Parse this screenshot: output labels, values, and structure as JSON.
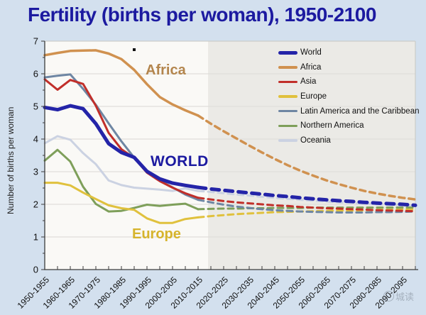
{
  "title": "Fertility (births per woman), 1950-2100",
  "axes": {
    "y_label": "Number of births per woman",
    "y_ticks": [
      "0",
      "1",
      "2",
      "3",
      "4",
      "5",
      "6",
      "7"
    ]
  },
  "annotations": {
    "africa": "Africa",
    "world": "WORLD",
    "europe": "Europe"
  },
  "watermark": "城读",
  "chart_data": {
    "type": "line",
    "title": "Fertility (births per woman), 1950-2100",
    "xlabel": "",
    "ylabel": "Number of births per woman",
    "ylim": [
      0,
      7
    ],
    "grid": "horizontal",
    "legend_position": "upper right",
    "x_step_years": 5,
    "n_points": 30,
    "x_tick_labels": [
      "1950-1955",
      "1960-1965",
      "1970-1975",
      "1980-1985",
      "1990-1995",
      "2000-2005",
      "2010-2015",
      "2020-2025",
      "2030-2035",
      "2040-2045",
      "2050-2055",
      "2060-2065",
      "2070-2075",
      "2080-2085",
      "2090-2095"
    ],
    "tick_every": 2,
    "forecast_start_index": 13,
    "forecast_note": "dashed lines from 2015-2020 onward are projections (shaded region)",
    "history_bg": "#faf9f6",
    "forecast_bg": "#ebeae6",
    "series": [
      {
        "name": "World",
        "color": "#2424a8",
        "width": 5,
        "values": [
          4.97,
          4.9,
          5.02,
          4.93,
          4.47,
          3.86,
          3.59,
          3.44,
          3.01,
          2.78,
          2.65,
          2.58,
          2.52,
          2.47,
          2.43,
          2.39,
          2.35,
          2.31,
          2.27,
          2.24,
          2.2,
          2.17,
          2.14,
          2.11,
          2.09,
          2.06,
          2.04,
          2.02,
          2.0,
          1.97
        ]
      },
      {
        "name": "Africa",
        "color": "#d0914f",
        "width": 3.5,
        "values": [
          6.57,
          6.64,
          6.7,
          6.71,
          6.72,
          6.62,
          6.45,
          6.12,
          5.68,
          5.29,
          5.06,
          4.88,
          4.72,
          4.47,
          4.24,
          4.02,
          3.8,
          3.59,
          3.39,
          3.2,
          3.03,
          2.88,
          2.74,
          2.62,
          2.51,
          2.41,
          2.33,
          2.26,
          2.2,
          2.15
        ]
      },
      {
        "name": "Asia",
        "color": "#c12f2a",
        "width": 3,
        "values": [
          5.83,
          5.51,
          5.81,
          5.69,
          5.02,
          4.19,
          3.69,
          3.42,
          2.97,
          2.71,
          2.51,
          2.34,
          2.2,
          2.15,
          2.1,
          2.06,
          2.03,
          2.0,
          1.97,
          1.95,
          1.92,
          1.9,
          1.88,
          1.87,
          1.85,
          1.84,
          1.82,
          1.81,
          1.8,
          1.79
        ]
      },
      {
        "name": "Europe",
        "color": "#e0c13d",
        "width": 3,
        "values": [
          2.66,
          2.66,
          2.58,
          2.36,
          2.16,
          1.97,
          1.88,
          1.83,
          1.57,
          1.43,
          1.43,
          1.55,
          1.6,
          1.64,
          1.67,
          1.7,
          1.72,
          1.74,
          1.76,
          1.77,
          1.78,
          1.79,
          1.8,
          1.81,
          1.81,
          1.82,
          1.83,
          1.83,
          1.84,
          1.84
        ]
      },
      {
        "name": "Latin America and the Caribbean",
        "color": "#6e86a3",
        "width": 3,
        "values": [
          5.89,
          5.94,
          5.98,
          5.54,
          5.05,
          4.48,
          3.93,
          3.43,
          3.02,
          2.73,
          2.52,
          2.3,
          2.14,
          2.06,
          1.99,
          1.93,
          1.89,
          1.85,
          1.82,
          1.8,
          1.78,
          1.77,
          1.76,
          1.75,
          1.75,
          1.75,
          1.76,
          1.76,
          1.77,
          1.78
        ]
      },
      {
        "name": "Northern America",
        "color": "#7e9f5a",
        "width": 3,
        "values": [
          3.34,
          3.67,
          3.31,
          2.54,
          2.01,
          1.78,
          1.8,
          1.89,
          1.99,
          1.95,
          1.99,
          2.02,
          1.85,
          1.86,
          1.87,
          1.87,
          1.88,
          1.88,
          1.89,
          1.89,
          1.89,
          1.9,
          1.9,
          1.9,
          1.9,
          1.9,
          1.9,
          1.9,
          1.9,
          1.9
        ]
      },
      {
        "name": "Oceania",
        "color": "#cbd2e2",
        "width": 3,
        "values": [
          3.87,
          4.09,
          3.98,
          3.57,
          3.23,
          2.73,
          2.59,
          2.51,
          2.48,
          2.45,
          2.41,
          2.49,
          2.41,
          2.38,
          2.34,
          2.3,
          2.27,
          2.23,
          2.2,
          2.17,
          2.14,
          2.11,
          2.09,
          2.06,
          2.04,
          2.02,
          2.0,
          1.98,
          1.97,
          1.95
        ]
      }
    ]
  }
}
